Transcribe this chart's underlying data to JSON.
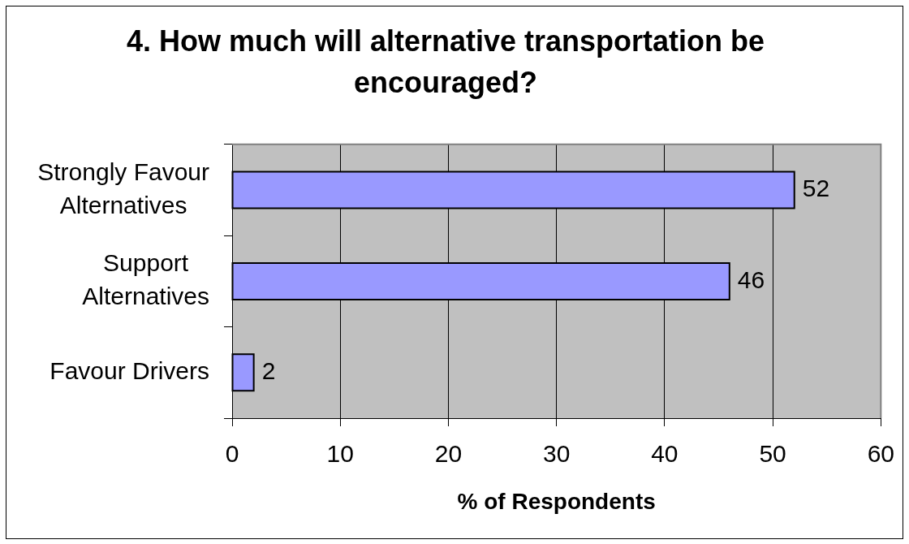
{
  "chart_data": {
    "type": "bar",
    "orientation": "horizontal",
    "title": "4. How much will alternative transportation be encouraged?",
    "xlabel": "% of Respondents",
    "categories": [
      "Strongly Favour Alternatives",
      "Support Alternatives",
      "Favour Drivers"
    ],
    "values": [
      52,
      46,
      2
    ],
    "color": "#9999ff",
    "xlim": [
      0,
      60
    ],
    "xticks": [
      0,
      10,
      20,
      30,
      40,
      50,
      60
    ],
    "grid": "x",
    "data_labels": true
  }
}
